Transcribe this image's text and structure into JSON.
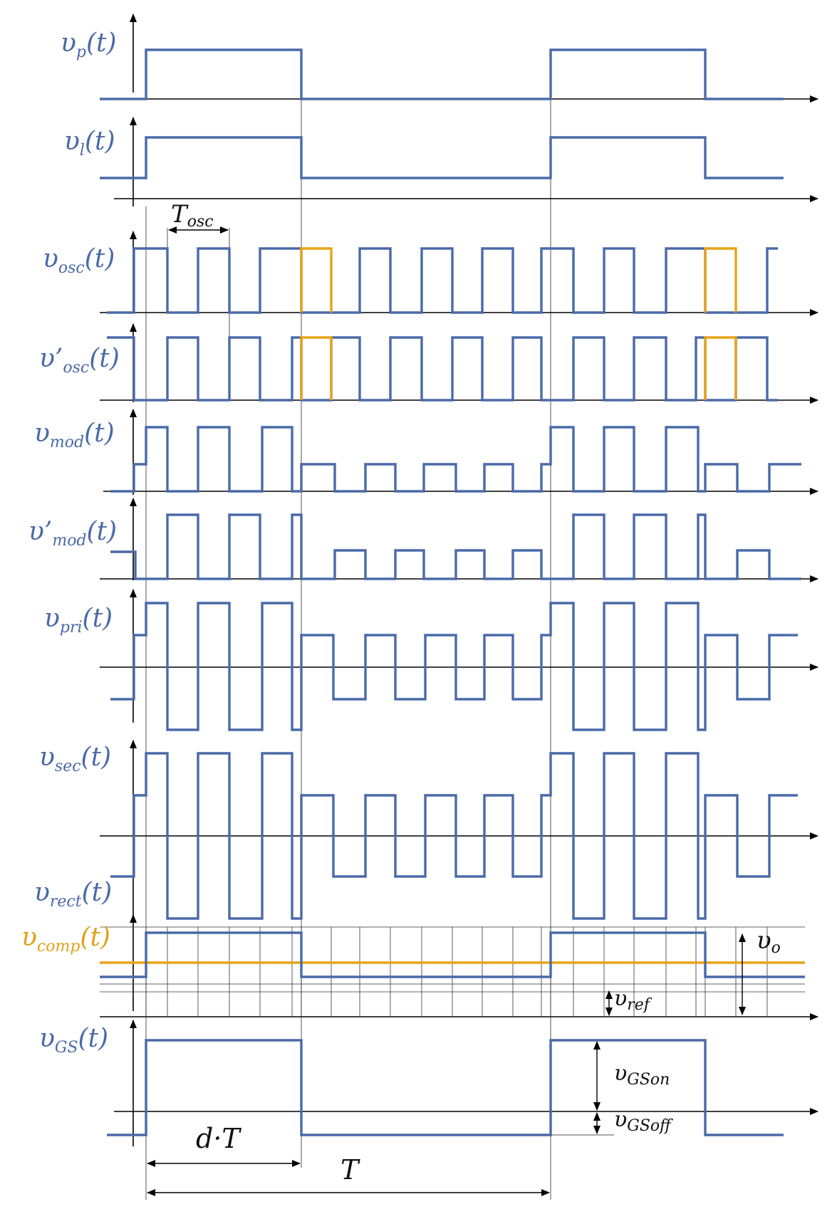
{
  "labels": {
    "vp": {
      "main": "υ",
      "sub": "p",
      "tail": "(t)"
    },
    "vl": {
      "main": "υ",
      "sub": "l",
      "tail": "(t)"
    },
    "vosc": {
      "main": "υ",
      "sub": "osc",
      "tail": "(t)"
    },
    "vosc2": {
      "main": "υ’",
      "sub": "osc",
      "tail": "(t)"
    },
    "vmod": {
      "main": "υ",
      "sub": "mod",
      "tail": "(t)"
    },
    "vmod2": {
      "main": "υ’",
      "sub": "mod",
      "tail": "(t)"
    },
    "vpri": {
      "main": "υ",
      "sub": "pri",
      "tail": "(t)"
    },
    "vsec": {
      "main": "υ",
      "sub": "sec",
      "tail": "(t)"
    },
    "vrect": {
      "main": "υ",
      "sub": "rect",
      "tail": "(t)"
    },
    "vcomp": {
      "main": "υ",
      "sub": "comp",
      "tail": "(t)"
    },
    "vgs": {
      "main": "υ",
      "sub": "GS",
      "tail": "(t)"
    }
  },
  "annotations": {
    "tosc": {
      "main": "T",
      "sub": "osc"
    },
    "vo": {
      "main": "υ",
      "sub": "o"
    },
    "vref": {
      "main": "υ",
      "sub": "ref"
    },
    "vgson": {
      "main": "υ",
      "sub": "GSon"
    },
    "vgsoff": {
      "main": "υ",
      "sub": "GSoff"
    },
    "dT": "d·T",
    "T": "T"
  },
  "colors": {
    "signal": "#4a6aa8",
    "highlight": "#e8a317",
    "axis": "#000000"
  }
}
